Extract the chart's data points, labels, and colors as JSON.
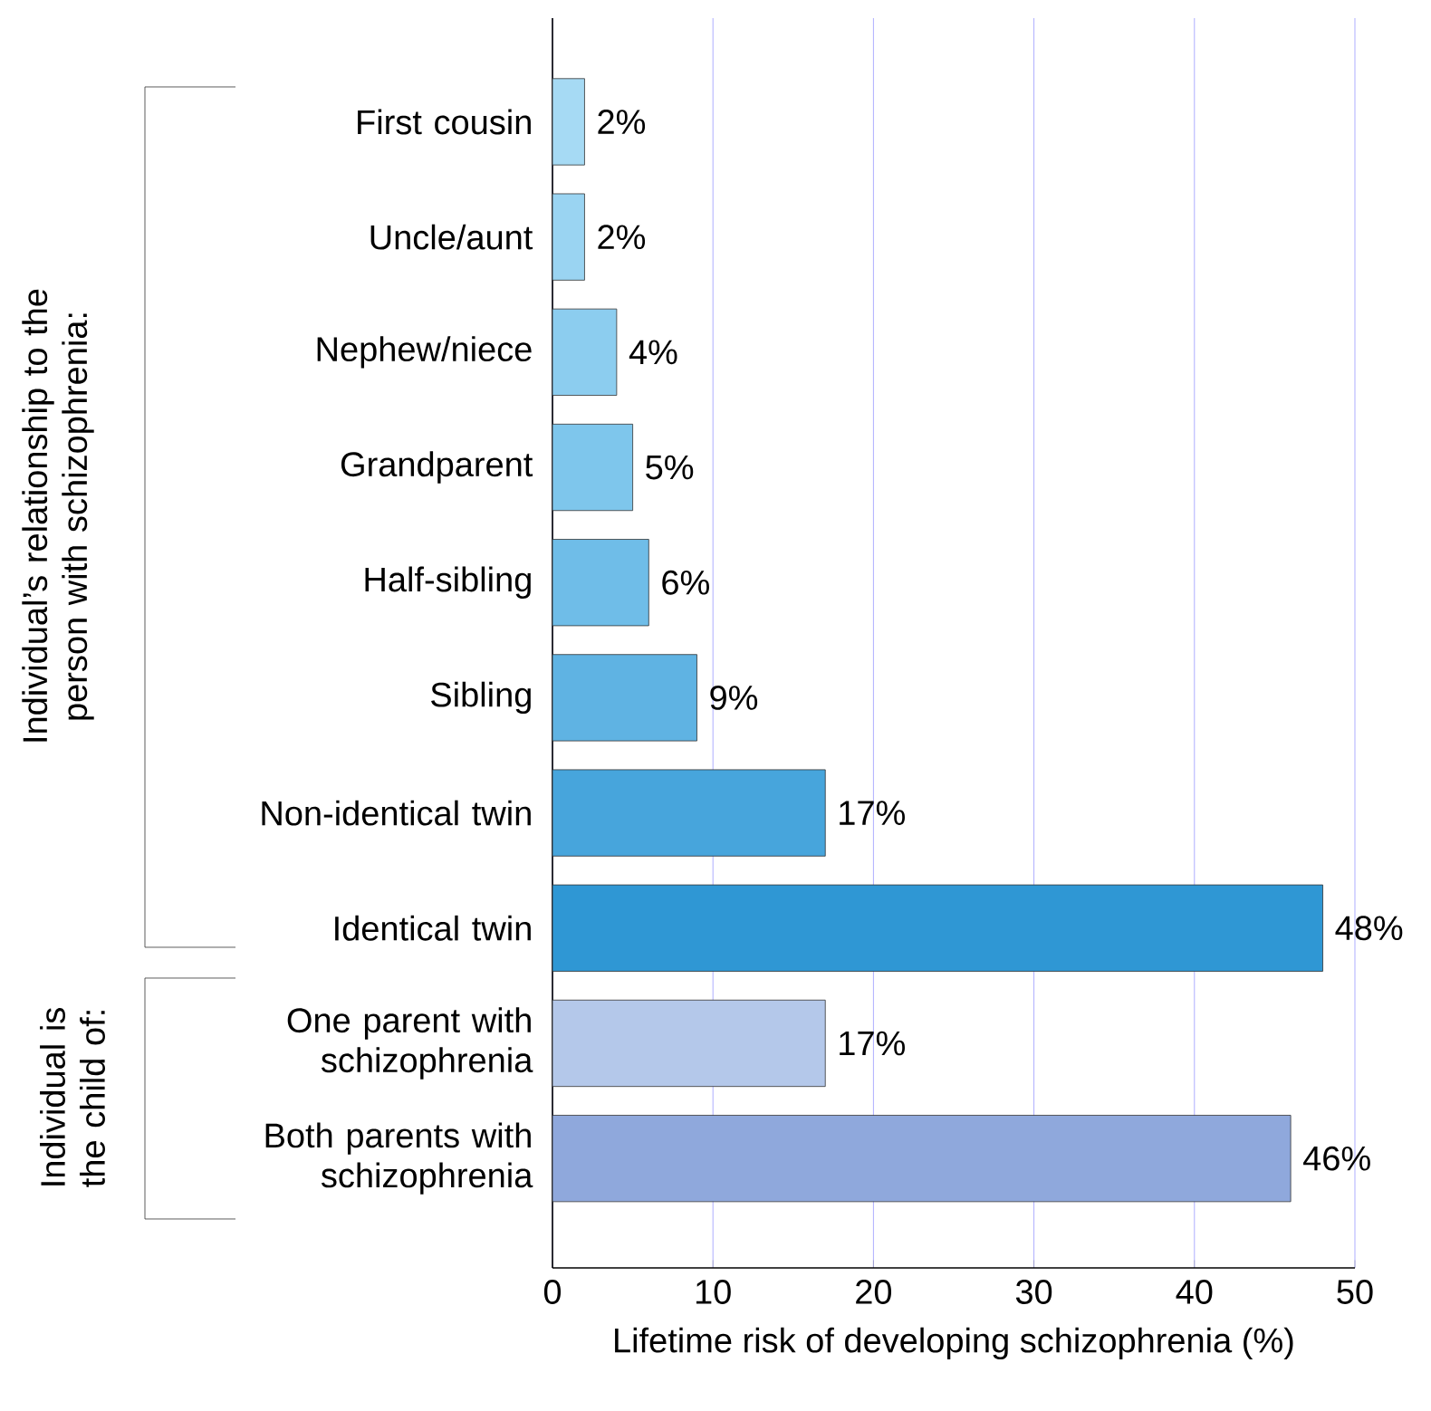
{
  "chart_data": {
    "type": "bar",
    "orientation": "horizontal",
    "categories": [
      "First cousin",
      "Uncle/aunt",
      "Nephew/niece",
      "Grandparent",
      "Half-sibling",
      "Sibling",
      "Non-identical twin",
      "Identical twin",
      "One parent with schizophrenia",
      "Both parents with schizophrenia"
    ],
    "values": [
      2,
      2,
      4,
      5,
      6,
      9,
      17,
      48,
      17,
      46
    ],
    "value_labels": [
      "2%",
      "2%",
      "4%",
      "5%",
      "6%",
      "9%",
      "17%",
      "48%",
      "17%",
      "46%"
    ],
    "colors": [
      "#a6daf4",
      "#9ad4f2",
      "#8ccdef",
      "#7ec6ec",
      "#6fbde8",
      "#5fb3e3",
      "#47a5dc",
      "#2f97d4",
      "#b4c8ea",
      "#8fa8dc"
    ],
    "xlabel": "Lifetime risk of developing schizophrenia (%)",
    "xlim": [
      0,
      50
    ],
    "xticks": [
      0,
      10,
      20,
      30,
      40,
      50
    ],
    "grid": "x",
    "annotations": [
      "Individual’s relationship to the person with schizophrenia:",
      "Individual is the child of:"
    ]
  }
}
